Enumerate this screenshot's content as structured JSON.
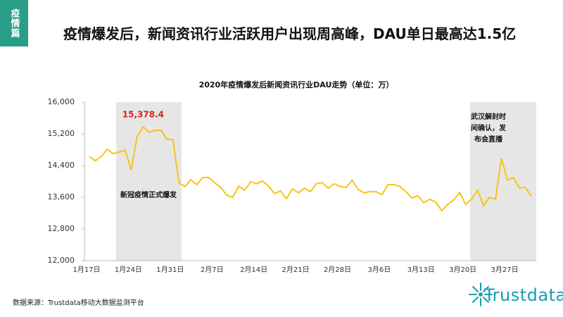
{
  "header": {
    "tab": "疫情篇",
    "title": "疫情爆发后，新闻资讯行业活跃用户出现周高峰，DAU单日最高达1.5亿"
  },
  "source": "数据来源：Trustdata移动大数据监测平台",
  "logo": "Trustdata",
  "chart_data": {
    "type": "line",
    "title": "2020年疫情爆发后新闻资讯行业DAU走势（单位：万）",
    "categories": [
      "1月17日",
      null,
      null,
      null,
      null,
      null,
      null,
      "1月24日",
      null,
      null,
      null,
      null,
      null,
      null,
      "1月31日",
      null,
      null,
      null,
      null,
      null,
      null,
      "2月7日",
      null,
      null,
      null,
      null,
      null,
      null,
      "2月14日",
      null,
      null,
      null,
      null,
      null,
      null,
      "2月21日",
      null,
      null,
      null,
      null,
      null,
      null,
      "2月28日",
      null,
      null,
      null,
      null,
      null,
      null,
      "3月6日",
      null,
      null,
      null,
      null,
      null,
      null,
      "3月13日",
      null,
      null,
      null,
      null,
      null,
      null,
      "3月20日",
      null,
      null,
      null,
      null,
      null,
      null,
      "3月27日",
      null,
      null,
      null,
      null
    ],
    "series": [
      {
        "name": "DAU",
        "color": "#f5c518",
        "values": [
          14630,
          14520,
          14630,
          14810,
          14700,
          14740,
          14790,
          14290,
          15130,
          15378.4,
          15240,
          15290,
          15290,
          15060,
          15060,
          13960,
          13870,
          14040,
          13920,
          14100,
          14100,
          13960,
          13850,
          13650,
          13600,
          13880,
          13780,
          13990,
          13940,
          14010,
          13880,
          13690,
          13760,
          13560,
          13810,
          13710,
          13830,
          13740,
          13940,
          13970,
          13830,
          13940,
          13870,
          13850,
          14030,
          13800,
          13710,
          13740,
          13740,
          13670,
          13920,
          13920,
          13870,
          13740,
          13580,
          13640,
          13460,
          13550,
          13480,
          13260,
          13420,
          13530,
          13720,
          13420,
          13550,
          13780,
          13390,
          13600,
          13550,
          14580,
          14030,
          14100,
          13830,
          13850,
          13620
        ],
        "value_labels": [
          null,
          null,
          null,
          null,
          null,
          null,
          null,
          null,
          null,
          "15,378.4",
          null,
          null,
          null,
          null,
          null,
          null,
          null,
          null,
          null,
          null,
          null,
          null,
          null,
          null,
          null,
          null,
          null,
          null,
          null,
          null,
          null,
          null,
          null,
          null,
          null,
          null,
          null,
          null,
          null,
          null,
          null,
          null,
          null,
          null,
          null,
          null,
          null,
          null,
          null,
          null,
          null,
          null,
          null,
          null,
          null,
          null,
          null,
          null,
          null,
          null,
          null,
          null,
          null,
          null,
          null,
          null,
          null,
          null,
          null,
          null,
          null,
          null,
          null,
          null,
          null
        ],
        "value_label_color": "#e02020"
      }
    ],
    "ylim": [
      12000,
      16000
    ],
    "yticks": [
      {
        "value": 12000,
        "label": "12,000"
      },
      {
        "value": 12800,
        "label": "12,800"
      },
      {
        "value": 13600,
        "label": "13,600"
      },
      {
        "value": 14400,
        "label": "14,400"
      },
      {
        "value": 15200,
        "label": "15,200"
      },
      {
        "value": 16000,
        "label": "16,000"
      }
    ],
    "annotations": [
      {
        "lines": [
          "新冠疫情正式爆发"
        ]
      },
      {
        "lines": [
          "武汉解封时",
          "间确认，发",
          "布会直播"
        ]
      }
    ]
  }
}
